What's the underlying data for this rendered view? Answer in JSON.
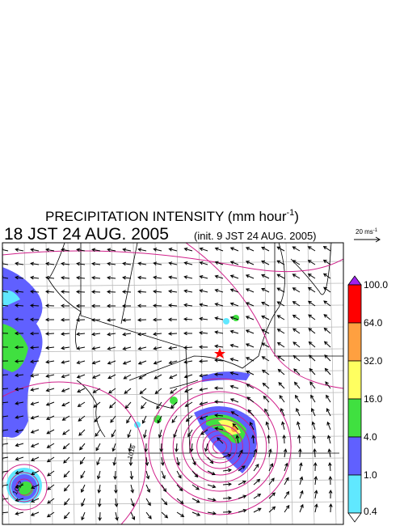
{
  "header": {
    "title": "PRECIPITATION INTENSITY (mm hour",
    "title_sup": "-1",
    "title_end": ")",
    "valid_time": "18 JST 24 AUG. 2005",
    "init_time": "(init. 9 JST 24 AUG. 2005)"
  },
  "vector_key": {
    "label": "20 ms",
    "label_sup": "-1"
  },
  "colorbar": {
    "labels": [
      "100.0",
      "64.0",
      "32.0",
      "16.0",
      "4.0",
      "1.0",
      "0.4"
    ],
    "colors": [
      "#ff0000",
      "#ffa040",
      "#ffff60",
      "#40e040",
      "#6060ff",
      "#60e8ff"
    ],
    "over_color": "#a020f0",
    "under_color": "#ffffff"
  },
  "map": {
    "contour_labels": [
      "1016",
      "1012"
    ]
  }
}
